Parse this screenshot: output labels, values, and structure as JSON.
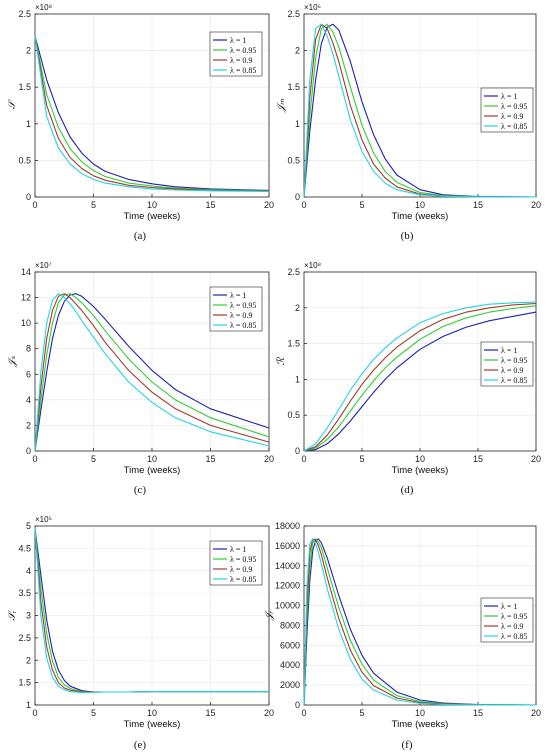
{
  "legend_labels": [
    "λ = 1",
    "λ = 0.95",
    "λ = 0.9",
    "λ = 0.85"
  ],
  "series_colors": [
    "#1f1fb4",
    "#33cc33",
    "#a33a2a",
    "#22d3e8"
  ],
  "chart_data": [
    {
      "type": "line",
      "caption": "(a)",
      "ylabel": "𝒮",
      "xlabel": "Time (weeks)",
      "y_multiplier": "×10⁸",
      "xlim": [
        0,
        20
      ],
      "ylim": [
        0,
        2.5
      ],
      "x_ticks": [
        "0",
        "5",
        "10",
        "15",
        "20"
      ],
      "y_ticks": [
        "0",
        "0.5",
        "1",
        "1.5",
        "2",
        "2.5"
      ],
      "legend_position": "top-right",
      "grid": true,
      "x": [
        0,
        1,
        2,
        3,
        4,
        5,
        6,
        8,
        10,
        12,
        15,
        20
      ],
      "series": [
        {
          "name": "λ = 1",
          "values": [
            2.2,
            1.6,
            1.15,
            0.82,
            0.6,
            0.45,
            0.35,
            0.24,
            0.18,
            0.14,
            0.11,
            0.09
          ]
        },
        {
          "name": "λ = 0.95",
          "values": [
            2.2,
            1.4,
            0.95,
            0.66,
            0.48,
            0.36,
            0.28,
            0.19,
            0.15,
            0.12,
            0.1,
            0.085
          ]
        },
        {
          "name": "λ = 0.9",
          "values": [
            2.2,
            1.25,
            0.8,
            0.54,
            0.39,
            0.29,
            0.23,
            0.16,
            0.13,
            0.11,
            0.09,
            0.08
          ]
        },
        {
          "name": "λ = 0.85",
          "values": [
            2.2,
            1.1,
            0.67,
            0.45,
            0.32,
            0.24,
            0.19,
            0.14,
            0.11,
            0.095,
            0.085,
            0.075
          ]
        }
      ]
    },
    {
      "type": "line",
      "caption": "(b)",
      "ylabel": "𝒥ₘ",
      "xlabel": "Time (weeks)",
      "y_multiplier": "×10⁵",
      "xlim": [
        0,
        20
      ],
      "ylim": [
        0,
        2.5
      ],
      "x_ticks": [
        "0",
        "5",
        "10",
        "15",
        "20"
      ],
      "y_ticks": [
        "0",
        "0.5",
        "1",
        "1.5",
        "2",
        "2.5"
      ],
      "legend_position": "center-right",
      "grid": true,
      "x": [
        0,
        0.5,
        1,
        1.5,
        2,
        2.5,
        3,
        4,
        5,
        6,
        7,
        8,
        10,
        12,
        15,
        20
      ],
      "series": [
        {
          "name": "λ = 1",
          "values": [
            0,
            0.9,
            1.6,
            2.1,
            2.32,
            2.36,
            2.28,
            1.85,
            1.3,
            0.85,
            0.52,
            0.3,
            0.1,
            0.03,
            0.005,
            0
          ]
        },
        {
          "name": "λ = 0.95",
          "values": [
            0,
            1.1,
            1.9,
            2.3,
            2.36,
            2.25,
            2.05,
            1.5,
            0.98,
            0.6,
            0.35,
            0.2,
            0.06,
            0.02,
            0.003,
            0
          ]
        },
        {
          "name": "λ = 0.9",
          "values": [
            0,
            1.35,
            2.15,
            2.36,
            2.3,
            2.1,
            1.85,
            1.25,
            0.78,
            0.45,
            0.26,
            0.14,
            0.04,
            0.01,
            0.002,
            0
          ]
        },
        {
          "name": "λ = 0.85",
          "values": [
            0,
            1.6,
            2.3,
            2.36,
            2.2,
            1.95,
            1.65,
            1.05,
            0.62,
            0.35,
            0.19,
            0.1,
            0.03,
            0.01,
            0.001,
            0
          ]
        }
      ]
    },
    {
      "type": "line",
      "caption": "(c)",
      "ylabel": "𝒥ₛ",
      "xlabel": "Time (weeks)",
      "y_multiplier": "×10⁷",
      "xlim": [
        0,
        20
      ],
      "ylim": [
        0,
        14
      ],
      "x_ticks": [
        "0",
        "5",
        "10",
        "15",
        "20"
      ],
      "y_ticks": [
        "0",
        "2",
        "4",
        "6",
        "8",
        "10",
        "12",
        "14"
      ],
      "legend_position": "top-right",
      "grid": true,
      "x": [
        0,
        0.5,
        1,
        1.5,
        2,
        2.5,
        3,
        3.5,
        4,
        5,
        6,
        8,
        10,
        12,
        15,
        20
      ],
      "series": [
        {
          "name": "λ = 1",
          "values": [
            0,
            3.2,
            6.2,
            8.8,
            10.6,
            11.7,
            12.2,
            12.3,
            12.1,
            11.3,
            10.3,
            8.2,
            6.3,
            4.8,
            3.3,
            1.8
          ]
        },
        {
          "name": "λ = 0.95",
          "values": [
            0,
            4.0,
            7.5,
            10.0,
            11.6,
            12.2,
            12.3,
            12.0,
            11.6,
            10.6,
            9.4,
            7.2,
            5.4,
            4.0,
            2.6,
            1.1
          ]
        },
        {
          "name": "λ = 0.9",
          "values": [
            0,
            5.0,
            8.8,
            11.0,
            12.1,
            12.3,
            12.0,
            11.5,
            11.0,
            9.8,
            8.5,
            6.3,
            4.6,
            3.3,
            2.0,
            0.7
          ]
        },
        {
          "name": "λ = 0.85",
          "values": [
            0,
            6.2,
            10.0,
            11.8,
            12.3,
            12.0,
            11.5,
            10.9,
            10.2,
            8.9,
            7.6,
            5.4,
            3.8,
            2.6,
            1.5,
            0.4
          ]
        }
      ]
    },
    {
      "type": "line",
      "caption": "(d)",
      "ylabel": "ℛ",
      "xlabel": "Time (weeks)",
      "y_multiplier": "×10⁸",
      "xlim": [
        0,
        20
      ],
      "ylim": [
        0,
        2.5
      ],
      "x_ticks": [
        "0",
        "5",
        "10",
        "15",
        "20"
      ],
      "y_ticks": [
        "0",
        "0.5",
        "1",
        "1.5",
        "2",
        "2.5"
      ],
      "legend_position": "center-right",
      "grid": true,
      "x": [
        0,
        1,
        2,
        3,
        4,
        5,
        6,
        7,
        8,
        10,
        12,
        14,
        16,
        18,
        20
      ],
      "series": [
        {
          "name": "λ = 1",
          "values": [
            0,
            0.02,
            0.1,
            0.24,
            0.42,
            0.62,
            0.82,
            1.0,
            1.16,
            1.42,
            1.6,
            1.73,
            1.82,
            1.88,
            1.94
          ]
        },
        {
          "name": "λ = 0.95",
          "values": [
            0,
            0.04,
            0.16,
            0.34,
            0.56,
            0.78,
            0.98,
            1.16,
            1.31,
            1.56,
            1.74,
            1.86,
            1.94,
            1.99,
            2.03
          ]
        },
        {
          "name": "λ = 0.9",
          "values": [
            0,
            0.06,
            0.22,
            0.45,
            0.7,
            0.93,
            1.13,
            1.3,
            1.45,
            1.68,
            1.84,
            1.94,
            2.0,
            2.04,
            2.06
          ]
        },
        {
          "name": "λ = 0.85",
          "values": [
            0,
            0.1,
            0.32,
            0.58,
            0.85,
            1.08,
            1.28,
            1.44,
            1.58,
            1.79,
            1.92,
            2.0,
            2.05,
            2.07,
            2.08
          ]
        }
      ]
    },
    {
      "type": "line",
      "caption": "(e)",
      "ylabel": "𝒮ᵣ",
      "xlabel": "Time (weeks)",
      "y_multiplier": "×10⁵",
      "xlim": [
        0,
        20
      ],
      "ylim": [
        1,
        5
      ],
      "x_ticks": [
        "0",
        "5",
        "10",
        "15",
        "20"
      ],
      "y_ticks": [
        "1",
        "1.5",
        "2",
        "2.5",
        "3",
        "3.5",
        "4",
        "4.5",
        "5"
      ],
      "legend_position": "top-right",
      "grid": true,
      "x": [
        0,
        0.5,
        1,
        1.5,
        2,
        2.5,
        3,
        4,
        5,
        6,
        8,
        10,
        15,
        20
      ],
      "series": [
        {
          "name": "λ = 1",
          "values": [
            4.95,
            3.9,
            2.9,
            2.2,
            1.78,
            1.55,
            1.42,
            1.32,
            1.29,
            1.29,
            1.29,
            1.3,
            1.3,
            1.3
          ]
        },
        {
          "name": "λ = 0.95",
          "values": [
            4.95,
            3.6,
            2.6,
            1.98,
            1.62,
            1.45,
            1.37,
            1.3,
            1.29,
            1.29,
            1.29,
            1.3,
            1.3,
            1.3
          ]
        },
        {
          "name": "λ = 0.9",
          "values": [
            4.95,
            3.3,
            2.3,
            1.78,
            1.5,
            1.38,
            1.33,
            1.29,
            1.29,
            1.29,
            1.29,
            1.3,
            1.3,
            1.3
          ]
        },
        {
          "name": "λ = 0.85",
          "values": [
            4.95,
            3.0,
            2.05,
            1.62,
            1.42,
            1.34,
            1.3,
            1.28,
            1.28,
            1.29,
            1.29,
            1.3,
            1.3,
            1.3
          ]
        }
      ]
    },
    {
      "type": "line",
      "caption": "(f)",
      "ylabel": "𝒥ᵣ",
      "xlabel": "Time (weeks)",
      "y_multiplier": "",
      "xlim": [
        0,
        20
      ],
      "ylim": [
        0,
        18000
      ],
      "x_ticks": [
        "0",
        "5",
        "10",
        "15",
        "20"
      ],
      "y_ticks": [
        "0",
        "2000",
        "4000",
        "6000",
        "8000",
        "10000",
        "12000",
        "14000",
        "16000",
        "18000"
      ],
      "legend_position": "center-right",
      "grid": true,
      "x": [
        0,
        0.25,
        0.5,
        0.75,
        1,
        1.25,
        1.5,
        2,
        3,
        4,
        5,
        6,
        8,
        10,
        12,
        15,
        20
      ],
      "series": [
        {
          "name": "λ = 1",
          "values": [
            0,
            7000,
            12500,
            15500,
            16600,
            16700,
            16300,
            14800,
            11000,
            7600,
            5000,
            3200,
            1300,
            500,
            200,
            50,
            0
          ]
        },
        {
          "name": "λ = 0.95",
          "values": [
            0,
            8500,
            14000,
            16300,
            16700,
            16400,
            15800,
            13800,
            9800,
            6500,
            4100,
            2500,
            950,
            350,
            130,
            30,
            0
          ]
        },
        {
          "name": "λ = 0.9",
          "values": [
            0,
            10000,
            15300,
            16700,
            16600,
            16000,
            15100,
            12800,
            8700,
            5500,
            3300,
            1950,
            700,
            250,
            90,
            20,
            0
          ]
        },
        {
          "name": "λ = 0.85",
          "values": [
            0,
            11800,
            16200,
            16700,
            16200,
            15300,
            14200,
            11700,
            7600,
            4600,
            2600,
            1500,
            500,
            170,
            60,
            10,
            0
          ]
        }
      ]
    }
  ]
}
